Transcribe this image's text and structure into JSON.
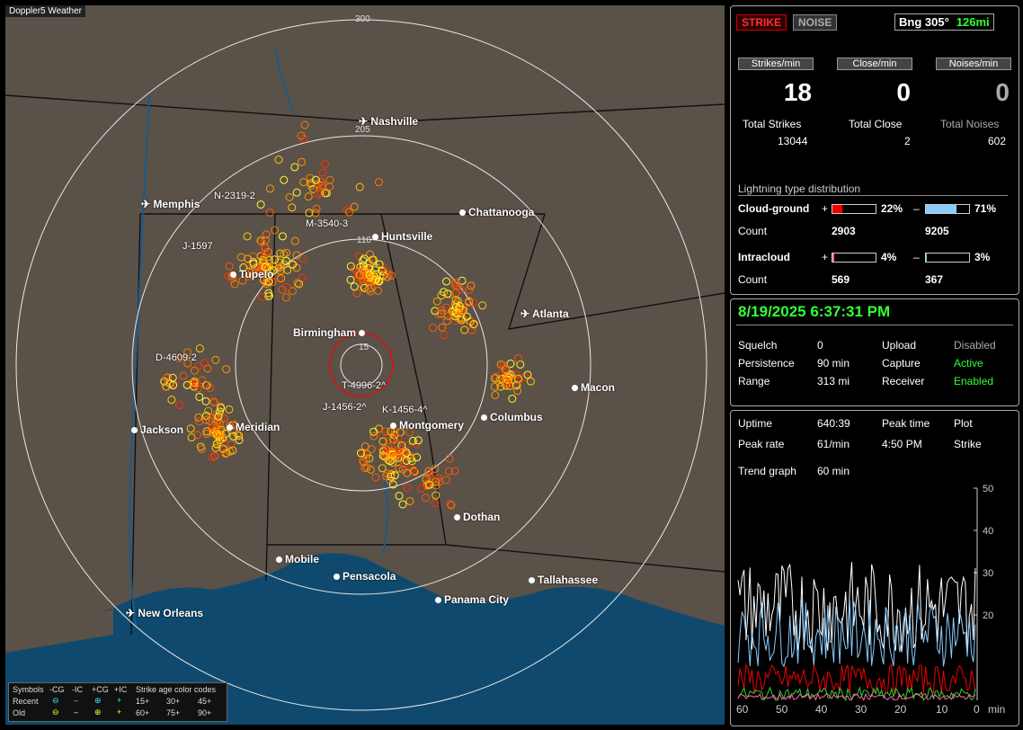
{
  "app": {
    "title": "Doppler5 Weather"
  },
  "map": {
    "rings": [
      "300",
      "205",
      "110",
      "15"
    ],
    "cities": [
      {
        "name": "Nashville"
      },
      {
        "name": "Memphis"
      },
      {
        "name": "Chattanooga"
      },
      {
        "name": "Huntsville"
      },
      {
        "name": "Tupelo"
      },
      {
        "name": "Atlanta"
      },
      {
        "name": "Birmingham"
      },
      {
        "name": "Macon"
      },
      {
        "name": "Jackson"
      },
      {
        "name": "Meridian"
      },
      {
        "name": "Montgomery"
      },
      {
        "name": "Columbus"
      },
      {
        "name": "Dothan"
      },
      {
        "name": "Mobile"
      },
      {
        "name": "Pensacola"
      },
      {
        "name": "Tallahassee"
      },
      {
        "name": "Panama City"
      },
      {
        "name": "New Orleans"
      }
    ],
    "sensors": [
      "N-2319-2",
      "M-3540-3",
      "J-1597",
      "D-4609-2",
      "T-4996-2^",
      "J-1456-2^",
      "K-1456-4^"
    ],
    "legend": {
      "symbols_label": "Symbols",
      "headers": [
        "-CG",
        "-IC",
        "+CG",
        "+IC"
      ],
      "color_codes_label": "Strike age color codes",
      "recent_label": "Recent",
      "old_label": "Old",
      "recent_ages": [
        "15+",
        "30+",
        "45+"
      ],
      "old_ages": [
        "60+",
        "75+",
        "90+"
      ],
      "recent_colors": [
        "#ffff33",
        "#ffcc00",
        "#ff9900"
      ],
      "old_colors": [
        "#ff7700",
        "#ff5500",
        "#ff3300"
      ]
    }
  },
  "stats": {
    "strike_btn": "STRIKE",
    "noise_btn": "NOISE",
    "bearing": "Bng 305°",
    "range_mi": "126mi",
    "strikes_min_label": "Strikes/min",
    "close_min_label": "Close/min",
    "noises_min_label": "Noises/min",
    "strikes_min": "18",
    "close_min": "0",
    "noises_min": "0",
    "total_strikes_label": "Total Strikes",
    "total_close_label": "Total Close",
    "total_noises_label": "Total Noises",
    "total_strikes": "13044",
    "total_close": "2",
    "total_noises": "602",
    "dist_title": "Lightning type distribution",
    "cg_label": "Cloud-ground",
    "ic_label": "Intracloud",
    "count_label": "Count",
    "plus": "+",
    "minus": "–",
    "cg_pos_pct": "22%",
    "cg_neg_pct": "71%",
    "ic_pos_pct": "4%",
    "ic_neg_pct": "3%",
    "cg_pos_frac": 0.22,
    "cg_neg_frac": 0.71,
    "ic_pos_frac": 0.04,
    "ic_neg_frac": 0.03,
    "cg_pos_count": "2903",
    "cg_neg_count": "9205",
    "ic_pos_count": "569",
    "ic_neg_count": "367"
  },
  "status": {
    "datetime": "8/19/2025 6:37:31 PM",
    "squelch_label": "Squelch",
    "squelch": "0",
    "persistence_label": "Persistence",
    "persistence": "90 min",
    "range_label": "Range",
    "range": "313 mi",
    "upload_label": "Upload",
    "upload": "Disabled",
    "capture_label": "Capture",
    "capture": "Active",
    "receiver_label": "Receiver",
    "receiver": "Enabled"
  },
  "trend": {
    "uptime_label": "Uptime",
    "uptime": "640:39",
    "peak_time_label": "Peak time",
    "peak_time": "4:50 PM",
    "plot_label": "Plot",
    "plot": "Strike",
    "peak_rate_label": "Peak rate",
    "peak_rate": "61/min",
    "trend_graph_label": "Trend graph",
    "trend_graph": "60 min",
    "y_ticks": [
      "50",
      "40",
      "30",
      "20"
    ],
    "x_ticks": [
      "60",
      "50",
      "40",
      "30",
      "20",
      "10",
      "0"
    ],
    "x_unit": "min"
  }
}
